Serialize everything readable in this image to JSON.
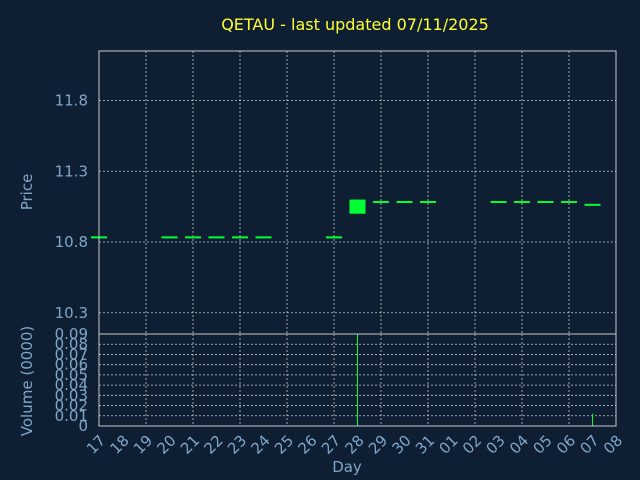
{
  "chart_data": {
    "type": "candlestick",
    "title": "QETAU - last updated 07/11/2025",
    "xlabel": "Day",
    "x_ticks": [
      "17",
      "18",
      "19",
      "20",
      "21",
      "22",
      "23",
      "24",
      "25",
      "26",
      "27",
      "28",
      "29",
      "30",
      "31",
      "01",
      "02",
      "03",
      "04",
      "05",
      "06",
      "07",
      "08"
    ],
    "price_panel": {
      "ylabel": "Price",
      "ylim": [
        10.15,
        12.15
      ],
      "y_ticks": [
        "10.3",
        "10.8",
        "11.3",
        "11.8"
      ],
      "grid": true,
      "candles": [
        {
          "x": "17",
          "open": 10.84,
          "close": 10.84
        },
        {
          "x": "20",
          "open": 10.84,
          "close": 10.84
        },
        {
          "x": "21",
          "open": 10.84,
          "close": 10.84
        },
        {
          "x": "22",
          "open": 10.84,
          "close": 10.84
        },
        {
          "x": "23",
          "open": 10.84,
          "close": 10.84
        },
        {
          "x": "24",
          "open": 10.84,
          "close": 10.84
        },
        {
          "x": "27",
          "open": 10.84,
          "close": 10.84
        },
        {
          "x": "28",
          "open": 11.0,
          "close": 11.1
        },
        {
          "x": "29",
          "open": 11.09,
          "close": 11.09
        },
        {
          "x": "30",
          "open": 11.09,
          "close": 11.09
        },
        {
          "x": "31",
          "open": 11.09,
          "close": 11.09
        },
        {
          "x": "03",
          "open": 11.09,
          "close": 11.09
        },
        {
          "x": "04",
          "open": 11.09,
          "close": 11.09
        },
        {
          "x": "05",
          "open": 11.09,
          "close": 11.09
        },
        {
          "x": "06",
          "open": 11.09,
          "close": 11.09
        },
        {
          "x": "07",
          "open": 11.07,
          "close": 11.07
        }
      ]
    },
    "volume_panel": {
      "ylabel": "Volume (0000)",
      "ylim": [
        0,
        0.09
      ],
      "y_ticks": [
        "0",
        "0.01",
        "0.02",
        "0.03",
        "0.04",
        "0.05",
        "0.06",
        "0.07",
        "0.08",
        "0.09"
      ],
      "grid": true,
      "bars": [
        {
          "x": "28",
          "value": 0.09
        },
        {
          "x": "07",
          "value": 0.012
        }
      ]
    }
  },
  "colors": {
    "background": "#0f1f33",
    "title": "#ffff33",
    "axis_text": "#7fa6c8",
    "grid": "#c8c8c8",
    "candle": "#00ff33"
  }
}
